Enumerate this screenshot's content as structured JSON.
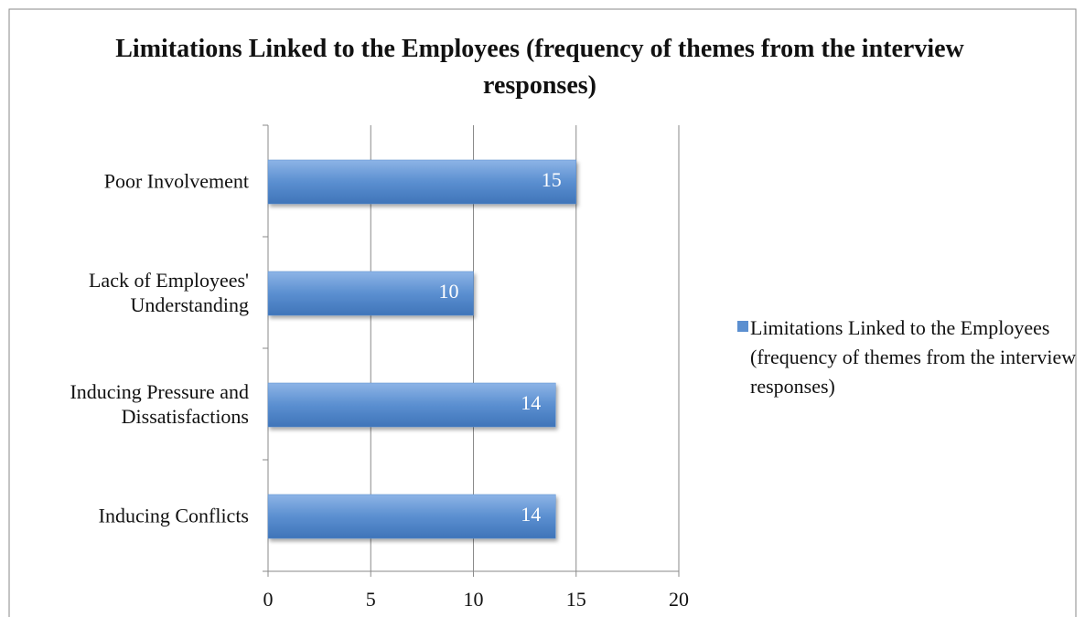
{
  "chart_data": {
    "type": "bar",
    "orientation": "horizontal",
    "title": "Limitations Linked to the Employees (frequency of  themes from the interview responses)",
    "categories": [
      "Poor Involvement",
      "Lack of Employees' Understanding",
      "Inducing Pressure and Dissatisfactions",
      "Inducing Conflicts"
    ],
    "series": [
      {
        "name": "Limitations Linked to the Employees (frequency of themes from the interview responses)",
        "color": "#5b8fd0",
        "values": [
          15,
          10,
          14,
          14
        ]
      }
    ],
    "xlim": [
      0,
      20
    ],
    "xticks": [
      0,
      5,
      10,
      15,
      20
    ],
    "grid": true,
    "legend": "right"
  }
}
